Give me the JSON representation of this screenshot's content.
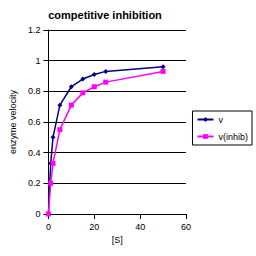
{
  "chart_data": {
    "type": "line",
    "title": "competitive inhibition",
    "x_label": "[S]",
    "y_label": "enzyme velocity",
    "x": [
      0,
      1,
      2,
      5,
      10,
      15,
      20,
      25,
      50
    ],
    "series": [
      {
        "name": "v",
        "color": "#000080",
        "marker": "diamond",
        "values": [
          0,
          0.33,
          0.5,
          0.71,
          0.83,
          0.88,
          0.91,
          0.93,
          0.96
        ]
      },
      {
        "name": "v(inhib)",
        "color": "#ff00ff",
        "marker": "square",
        "values": [
          0,
          0.2,
          0.33,
          0.55,
          0.71,
          0.79,
          0.83,
          0.86,
          0.93
        ]
      }
    ],
    "xlim": [
      0,
      60
    ],
    "xticks": [
      0,
      20,
      40,
      60
    ],
    "ylim": [
      0,
      1.2
    ],
    "yticks": [
      0,
      0.2,
      0.4,
      0.6,
      0.8,
      1,
      1.2
    ],
    "grid": true,
    "legend": "right"
  }
}
